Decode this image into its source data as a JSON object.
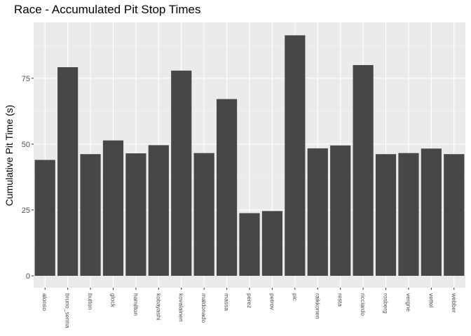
{
  "chart_data": {
    "type": "bar",
    "title": "Race - Accumulated Pit Stop Times",
    "xlabel": "",
    "ylabel": "Cumulative Pit Time (s)",
    "ylim": [
      -4.5,
      96.2
    ],
    "yticks": [
      0,
      25,
      50,
      75
    ],
    "grid": true,
    "legend": "none",
    "colors": {
      "bar": "#474747",
      "panel": "#ebebeb",
      "grid_major": "#ffffff",
      "grid_minor": "#f5f5f5",
      "tick_label": "#4d4d4d"
    },
    "categories": [
      "alonso",
      "bruno_senna",
      "button",
      "glock",
      "hamilton",
      "kobayashi",
      "kovalainen",
      "maldonado",
      "massa",
      "perez",
      "petrov",
      "pic",
      "raikkonen",
      "resta",
      "ricciardo",
      "rosberg",
      "vergne",
      "vettel",
      "webber"
    ],
    "values": [
      44.0,
      79.2,
      46.2,
      51.4,
      46.5,
      49.6,
      77.9,
      46.6,
      67.1,
      23.8,
      24.6,
      91.3,
      48.4,
      49.5,
      80.0,
      46.2,
      46.6,
      48.3,
      46.2
    ]
  }
}
